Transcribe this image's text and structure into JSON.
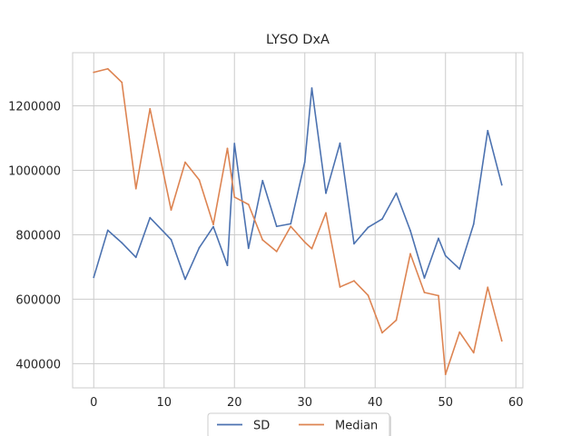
{
  "chart_data": {
    "type": "line",
    "title": "LYSO DxA",
    "xlabel": "",
    "ylabel": "",
    "xlim": [
      -3,
      61
    ],
    "ylim": [
      325000,
      1365000
    ],
    "x_ticks": [
      0,
      10,
      20,
      30,
      40,
      50,
      60
    ],
    "y_ticks": [
      400000,
      600000,
      800000,
      1000000,
      1200000
    ],
    "grid": true,
    "legend_position": "bottom-center",
    "x": [
      0,
      2,
      4,
      6,
      8,
      11,
      13,
      15,
      17,
      19,
      20,
      22,
      24,
      26,
      28,
      30,
      31,
      33,
      35,
      37,
      39,
      41,
      43,
      45,
      47,
      49,
      50,
      52,
      54,
      56,
      58
    ],
    "series": [
      {
        "name": "SD",
        "color": "#4c72b0",
        "values": [
          668000,
          814000,
          775000,
          730000,
          853000,
          785000,
          662000,
          760000,
          825000,
          705000,
          1083000,
          758000,
          968000,
          826000,
          834000,
          1026000,
          1255000,
          929000,
          1084000,
          772000,
          823000,
          849000,
          929000,
          813000,
          666000,
          789000,
          735000,
          694000,
          833000,
          1123000,
          955000
        ]
      },
      {
        "name": "Median",
        "color": "#dd8452",
        "values": [
          1304000,
          1315000,
          1273000,
          943000,
          1191000,
          877000,
          1025000,
          970000,
          832000,
          1068000,
          917000,
          894000,
          784000,
          748000,
          826000,
          777000,
          757000,
          868000,
          638000,
          657000,
          612000,
          496000,
          535000,
          741000,
          621000,
          611000,
          367000,
          498000,
          434000,
          637000,
          471000
        ]
      }
    ]
  }
}
